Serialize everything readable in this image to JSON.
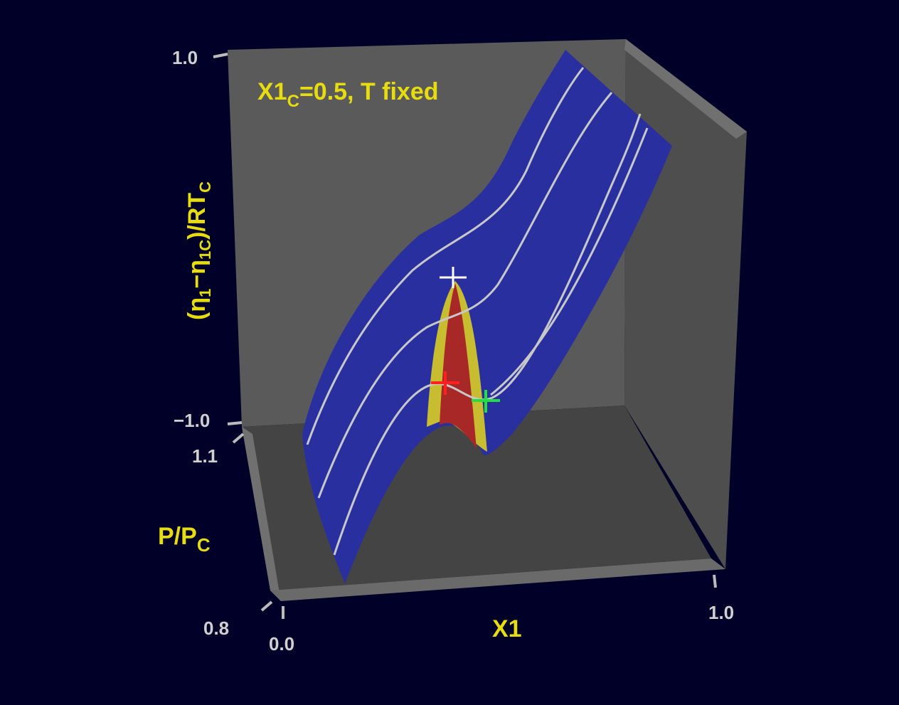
{
  "title": {
    "main": "X1",
    "sub": "C",
    "rest": "=0.5,  T  fixed"
  },
  "axes": {
    "z": {
      "label": {
        "open": "(η",
        "sub1": "1",
        "mid": "−η",
        "sub2": "1C",
        "close": ")/RT",
        "sub3": "C"
      },
      "ticks": [
        "1.0",
        "−1.0"
      ]
    },
    "y": {
      "label": {
        "main": "P/P",
        "sub": "C"
      },
      "ticks": [
        "1.1",
        "0.8"
      ]
    },
    "x": {
      "label": "X1",
      "ticks": [
        "0.0",
        "1.0"
      ]
    }
  }
}
